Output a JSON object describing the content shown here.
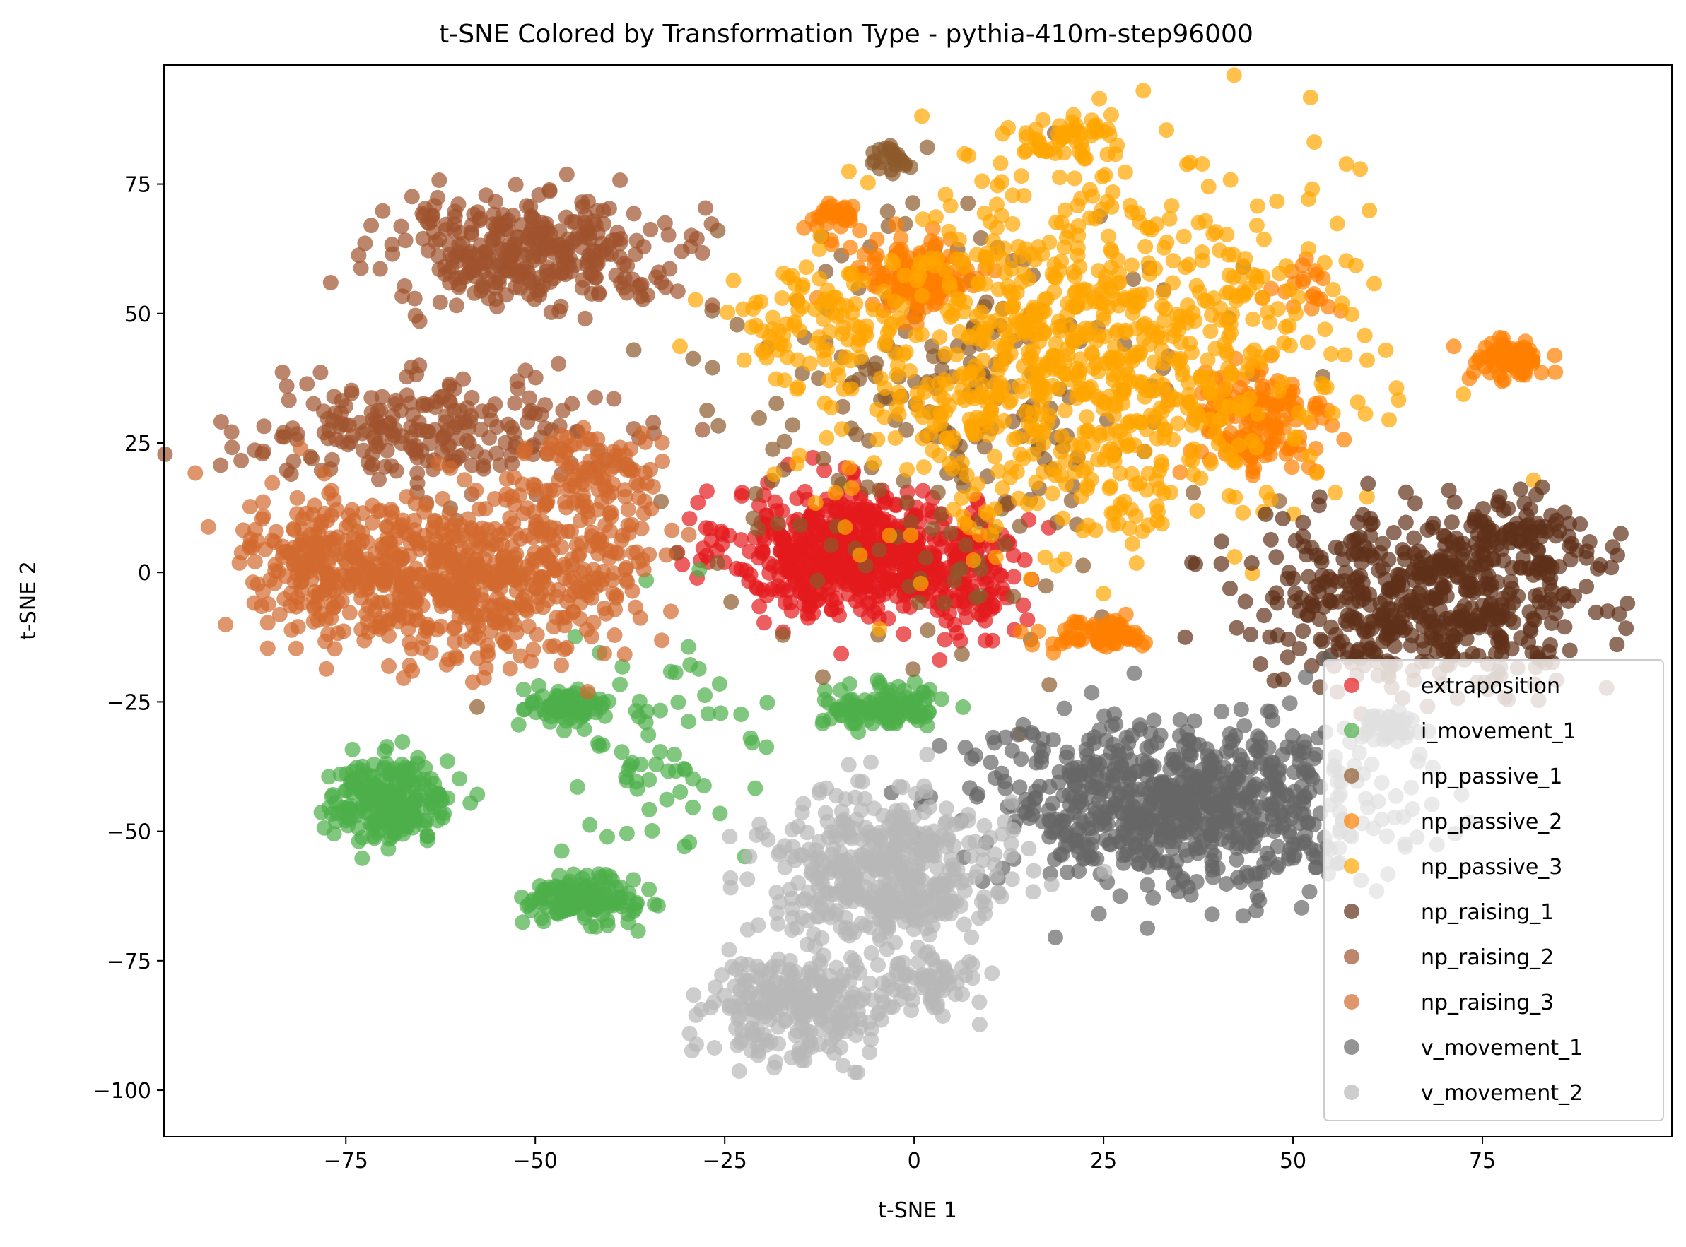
{
  "chart_data": {
    "type": "scatter",
    "title": "t-SNE Colored by Transformation Type - pythia-410m-step96000",
    "xlabel": "t-SNE 1",
    "ylabel": "t-SNE 2",
    "xlim": [
      -99,
      100
    ],
    "ylim": [
      -109,
      98
    ],
    "x_ticks": [
      -75,
      -50,
      -25,
      0,
      25,
      50,
      75
    ],
    "y_ticks": [
      75,
      50,
      25,
      0,
      -25,
      -50,
      -75,
      -100
    ],
    "x_tick_labels": [
      "−75",
      "−50",
      "−25",
      "0",
      "25",
      "50",
      "75"
    ],
    "y_tick_labels": [
      "75",
      "50",
      "25",
      "0",
      "−25",
      "−50",
      "−75",
      "−100"
    ],
    "grid": false,
    "legend_position": "lower-right",
    "marker_alpha": 0.7,
    "series": [
      {
        "name": "extraposition",
        "color": "#e41a1c",
        "clusters": [
          {
            "cx": -8,
            "cy": 4,
            "sx": 8,
            "sy": 6,
            "n": 620
          },
          {
            "cx": 8,
            "cy": -2,
            "sx": 3,
            "sy": 6,
            "n": 90
          }
        ]
      },
      {
        "name": "i_movement_1",
        "color": "#4daf4a",
        "clusters": [
          {
            "cx": -69,
            "cy": -44,
            "sx": 4,
            "sy": 4,
            "n": 240
          },
          {
            "cx": -44,
            "cy": -63,
            "sx": 3.5,
            "sy": 2,
            "n": 150
          },
          {
            "cx": -46,
            "cy": -26,
            "sx": 2.5,
            "sy": 2,
            "n": 70
          },
          {
            "cx": -4,
            "cy": -26,
            "sx": 4,
            "sy": 2,
            "n": 120
          },
          {
            "cx": -33,
            "cy": -36,
            "sx": 7,
            "sy": 11,
            "n": 70
          }
        ]
      },
      {
        "name": "np_passive_1",
        "color": "#8b5a2b",
        "clusters": [
          {
            "cx": 5,
            "cy": 30,
            "sx": 16,
            "sy": 20,
            "n": 250
          },
          {
            "cx": -3,
            "cy": 80,
            "sx": 1.5,
            "sy": 1.5,
            "n": 25
          }
        ]
      },
      {
        "name": "np_passive_2",
        "color": "#ff7f00",
        "clusters": [
          {
            "cx": 0,
            "cy": 57,
            "sx": 4,
            "sy": 4,
            "n": 140
          },
          {
            "cx": 45,
            "cy": 29,
            "sx": 5,
            "sy": 6,
            "n": 150
          },
          {
            "cx": 78,
            "cy": 41,
            "sx": 2.5,
            "sy": 2,
            "n": 70
          },
          {
            "cx": 24,
            "cy": -12,
            "sx": 4,
            "sy": 1.5,
            "n": 60
          },
          {
            "cx": -10,
            "cy": 69,
            "sx": 2,
            "sy": 1.5,
            "n": 30
          },
          {
            "cx": 52,
            "cy": 55,
            "sx": 2,
            "sy": 2,
            "n": 20
          }
        ]
      },
      {
        "name": "np_passive_3",
        "color": "#ffa500",
        "clusters": [
          {
            "cx": 22,
            "cy": 42,
            "sx": 16,
            "sy": 18,
            "n": 900
          },
          {
            "cx": 20,
            "cy": 84,
            "sx": 3,
            "sy": 2,
            "n": 50
          },
          {
            "cx": -14,
            "cy": 48,
            "sx": 5,
            "sy": 6,
            "n": 70
          }
        ]
      },
      {
        "name": "np_raising_1",
        "color": "#603019",
        "clusters": [
          {
            "cx": 68,
            "cy": -5,
            "sx": 11,
            "sy": 8,
            "n": 520
          },
          {
            "cx": 80,
            "cy": 7,
            "sx": 5,
            "sy": 4,
            "n": 80
          }
        ]
      },
      {
        "name": "np_raising_2",
        "color": "#a0522d",
        "clusters": [
          {
            "cx": -50,
            "cy": 62,
            "sx": 10,
            "sy": 5,
            "n": 340
          },
          {
            "cx": -65,
            "cy": 27,
            "sx": 12,
            "sy": 5,
            "n": 230
          }
        ]
      },
      {
        "name": "np_raising_3",
        "color": "#d2692f",
        "clusters": [
          {
            "cx": -77,
            "cy": 2,
            "sx": 6,
            "sy": 7,
            "n": 260
          },
          {
            "cx": -62,
            "cy": -2,
            "sx": 6,
            "sy": 8,
            "n": 260
          },
          {
            "cx": -48,
            "cy": 0,
            "sx": 7,
            "sy": 8,
            "n": 260
          },
          {
            "cx": -43,
            "cy": 18,
            "sx": 5,
            "sy": 5,
            "n": 100
          }
        ]
      },
      {
        "name": "v_movement_1",
        "color": "#666666",
        "clusters": [
          {
            "cx": 35,
            "cy": -45,
            "sx": 13,
            "sy": 8,
            "n": 760
          },
          {
            "cx": 62,
            "cy": -30,
            "sx": 2,
            "sy": 2,
            "n": 40
          }
        ]
      },
      {
        "name": "v_movement_2",
        "color": "#b8b8b8",
        "clusters": [
          {
            "cx": -4,
            "cy": -58,
            "sx": 8,
            "sy": 7,
            "n": 460
          },
          {
            "cx": -15,
            "cy": -84,
            "sx": 6,
            "sy": 5,
            "n": 260
          },
          {
            "cx": 2,
            "cy": -79,
            "sx": 3,
            "sy": 3,
            "n": 60
          }
        ]
      }
    ]
  }
}
